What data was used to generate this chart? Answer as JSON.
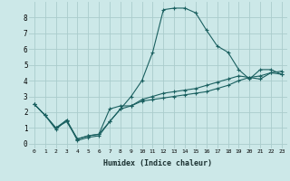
{
  "xlabel": "Humidex (Indice chaleur)",
  "background_color": "#cce8e8",
  "grid_color": "#aacccc",
  "line_color": "#1a6060",
  "xlim": [
    -0.5,
    23.5
  ],
  "ylim": [
    -0.3,
    9.0
  ],
  "xticks": [
    0,
    1,
    2,
    3,
    4,
    5,
    6,
    7,
    8,
    9,
    10,
    11,
    12,
    13,
    14,
    15,
    16,
    17,
    18,
    19,
    20,
    21,
    22,
    23
  ],
  "yticks": [
    0,
    1,
    2,
    3,
    4,
    5,
    6,
    7,
    8
  ],
  "series": [
    [
      2.5,
      1.8,
      0.9,
      1.5,
      0.2,
      0.4,
      0.5,
      1.4,
      2.2,
      3.0,
      4.0,
      5.8,
      8.5,
      8.6,
      8.6,
      8.3,
      7.2,
      6.2,
      5.8,
      4.7,
      4.1,
      4.7,
      4.7,
      4.4
    ],
    [
      2.5,
      1.8,
      1.0,
      1.5,
      0.3,
      0.5,
      0.6,
      2.2,
      2.4,
      2.4,
      2.7,
      2.8,
      2.9,
      3.0,
      3.1,
      3.2,
      3.3,
      3.5,
      3.7,
      4.0,
      4.2,
      4.1,
      4.5,
      4.4
    ],
    [
      2.5,
      1.8,
      1.0,
      1.4,
      0.3,
      0.5,
      0.6,
      1.4,
      2.2,
      2.4,
      2.8,
      3.0,
      3.2,
      3.3,
      3.4,
      3.5,
      3.7,
      3.9,
      4.1,
      4.3,
      4.2,
      4.3,
      4.5,
      4.6
    ]
  ]
}
